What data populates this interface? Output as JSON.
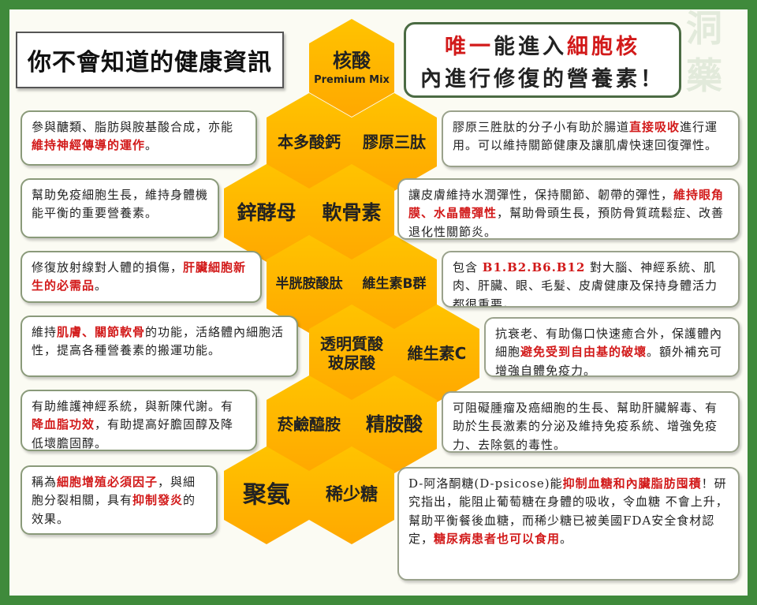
{
  "title": "你不會知道的健康資訊",
  "headline": {
    "line1_parts": [
      {
        "text": "唯一",
        "red": true
      },
      {
        "text": "能進入",
        "red": false
      },
      {
        "text": "細胞核",
        "red": true
      }
    ],
    "line2": "內進行修復的營養素！"
  },
  "watermark_chars": [
    "洞",
    "藥"
  ],
  "hexagons": {
    "nucleic_acid": "核酸",
    "premium_mix": "Premium Mix",
    "calcium": "本多酸鈣",
    "collagen": "膠原三肽",
    "zinc_yeast": "鋅酵母",
    "chondroitin": "軟骨素",
    "cystine": "半胱胺酸肽",
    "vitamin_b": "維生素B群",
    "hyaluronic_1": "透明質酸",
    "hyaluronic_2": "玻尿酸",
    "vitamin_c": "維生素C",
    "nicotinamide": "菸鹼醯胺",
    "arginine": "精胺酸",
    "polyamine": "聚氨",
    "rare_sugar": "稀少糖"
  },
  "left_boxes": [
    [
      {
        "t": "參與醣類、脂肪與胺基酸合成，",
        "r": false
      },
      {
        "t": "亦能",
        "r": false
      },
      {
        "t": "維持神經傳導的運作",
        "r": true
      },
      {
        "t": "。",
        "r": false
      }
    ],
    [
      {
        "t": "幫助免疫細胞生長，維持身體機能平衡的重要營養素。",
        "r": false
      }
    ],
    [
      {
        "t": "修復放射線對人體的損傷，",
        "r": false
      },
      {
        "t": "肝臟細胞新生的必需品",
        "r": true
      },
      {
        "t": "。",
        "r": false
      }
    ],
    [
      {
        "t": "維持",
        "r": false
      },
      {
        "t": "肌膚、關節軟骨",
        "r": true
      },
      {
        "t": "的功能，活絡體內細胞活性，提高各種營養素的搬運功能。",
        "r": false
      }
    ],
    [
      {
        "t": "有助維護神經系統，與新陳代謝。有",
        "r": false
      },
      {
        "t": "降血脂功效",
        "r": true
      },
      {
        "t": "，有助提高好膽固醇及降低壞膽固醇。",
        "r": false
      }
    ],
    [
      {
        "t": "稱為",
        "r": false
      },
      {
        "t": "細胞增殖必須因子",
        "r": true
      },
      {
        "t": "，與細胞分裂相關，具有",
        "r": false
      },
      {
        "t": "抑制發炎",
        "r": true
      },
      {
        "t": "的效果。",
        "r": false
      }
    ]
  ],
  "right_boxes": [
    [
      {
        "t": "膠原三胜肽的分子小有助於腸道",
        "r": false
      },
      {
        "t": "直接吸收",
        "r": true
      },
      {
        "t": "進行運用。可以維持關節健康及讓肌膚快速回復彈性。",
        "r": false
      }
    ],
    [
      {
        "t": "讓皮膚維持水潤彈性，保持關節、韌帶的彈性，",
        "r": false
      },
      {
        "t": "維持眼角膜、水晶體彈性",
        "r": true
      },
      {
        "t": "，幫助骨頭生長，預防骨質疏鬆症、改善退化性關節炎。",
        "r": false
      }
    ],
    [
      {
        "t": "包含 ",
        "r": false
      },
      {
        "t": "B1.B2.B6.B12",
        "r": true
      },
      {
        "t": " 對大腦、神經系統、肌肉、肝臟、眼、毛髮、皮膚健康及保持身體活力都很重要。",
        "r": false
      }
    ],
    [
      {
        "t": "抗衰老、有助傷口快速癒合外，保護體內細胞",
        "r": false
      },
      {
        "t": "避免受到自由基的破壞",
        "r": true
      },
      {
        "t": "。額外補充可增強自體免疫力。",
        "r": false
      }
    ],
    [
      {
        "t": "可阻礙腫瘤及癌細胞的生長、幫助肝臟解毒、有助於生長激素的分泌及維持免疫系統、增強免疫力、去除氨的毒性。",
        "r": false
      }
    ],
    [
      {
        "t": "D-阿洛酮糖(D-psicose)能",
        "r": false
      },
      {
        "t": "抑制血糖和內臟脂肪囤積",
        "r": true
      },
      {
        "t": "！研究指出，能阻止葡萄糖在身體的吸收，令血糖 不會上升，幫助平衡餐後血糖，而稀少糖已被美國FDA安全食材認定，",
        "r": false
      },
      {
        "t": "糖尿病患者也可以食用",
        "r": true
      },
      {
        "t": "。",
        "r": false
      }
    ]
  ],
  "colors": {
    "frame_green": "#3f8a3b",
    "hex_yellow": "#ffb800",
    "highlight_red": "#d21a1a"
  }
}
